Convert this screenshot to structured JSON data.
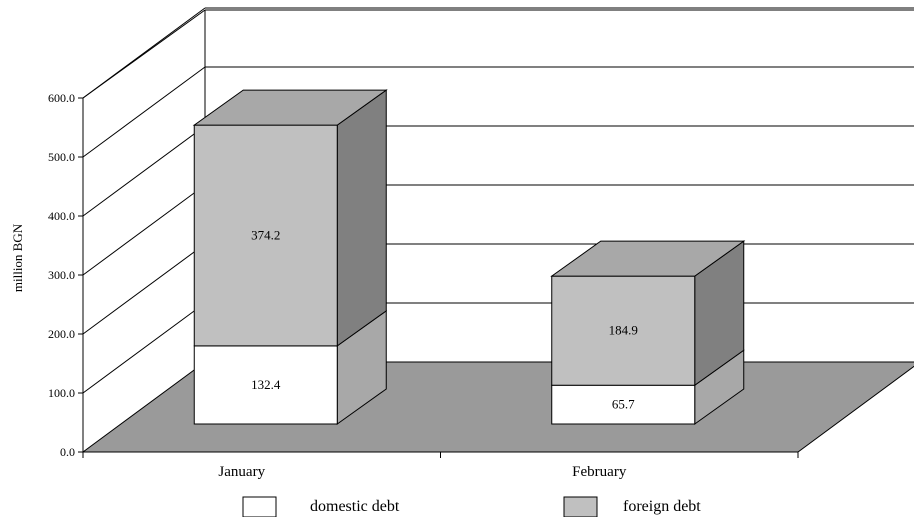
{
  "chart_data": {
    "type": "bar",
    "stacked": true,
    "three_d": true,
    "categories": [
      "January",
      "February"
    ],
    "series": [
      {
        "name": "domestic debt",
        "values": [
          132.4,
          65.7
        ],
        "color": "#ffffff"
      },
      {
        "name": "foreign debt",
        "values": [
          374.2,
          184.9
        ],
        "color": "#c0c0c0"
      }
    ],
    "title": "",
    "xlabel": "",
    "ylabel": "million BGN",
    "ylim": [
      0,
      600
    ],
    "yticks": [
      "0.0",
      "100.0",
      "200.0",
      "300.0",
      "400.0",
      "500.0",
      "600.0"
    ],
    "grid": true,
    "legend_position": "bottom",
    "colors": {
      "floor": "#9a9a9a",
      "top_face": "#a8a8a8",
      "side_face": "#808080",
      "side_face_domestic": "#a8a8a8",
      "outline": "#000000"
    }
  }
}
